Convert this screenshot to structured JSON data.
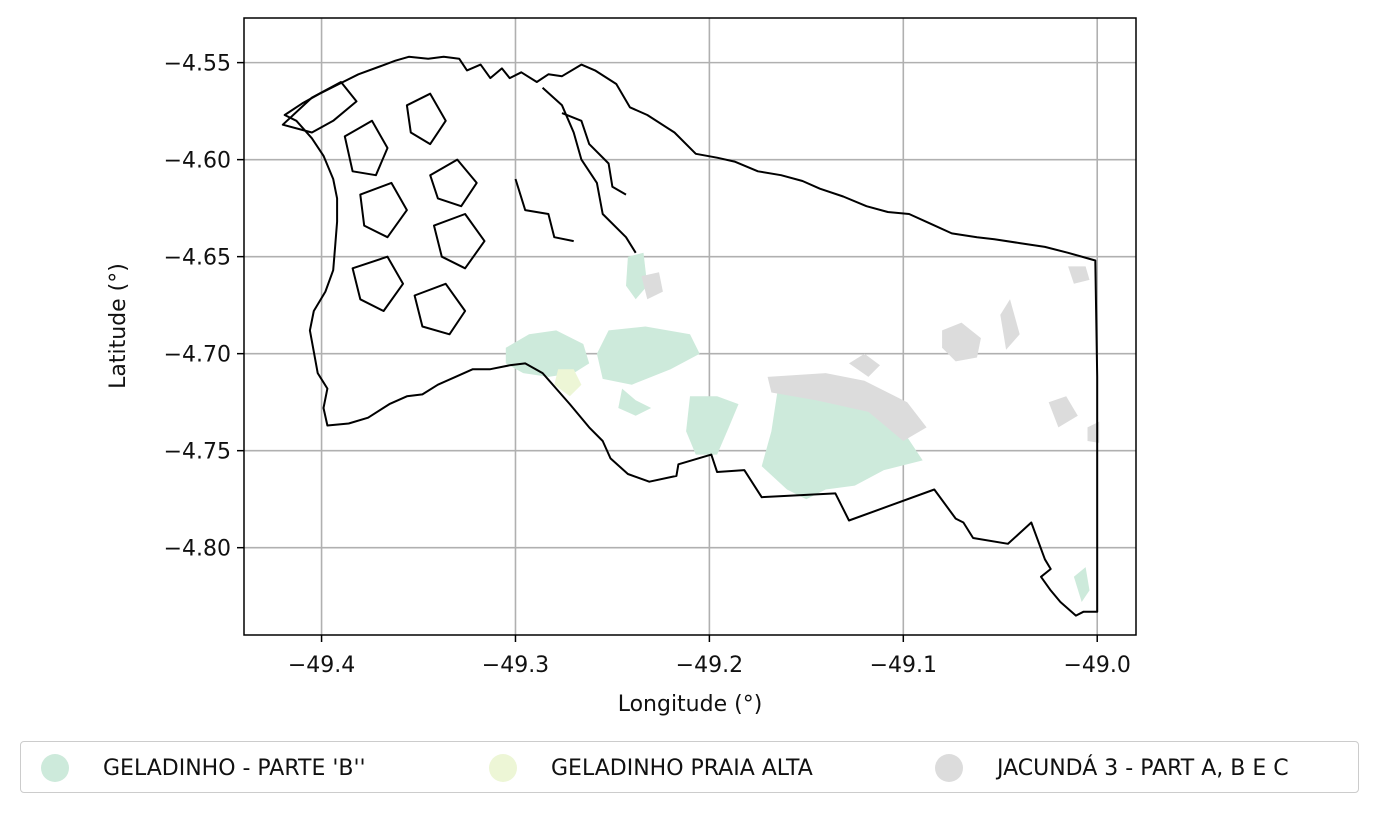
{
  "chart_data": {
    "type": "map",
    "xlabel": "Longitude (°)",
    "ylabel": "Latitude (°)",
    "xlim": [
      -49.44,
      -48.98
    ],
    "ylim": [
      -4.845,
      -4.527
    ],
    "xticks": [
      -49.4,
      -49.3,
      -49.2,
      -49.1,
      -49.0
    ],
    "xtick_labels": [
      "−49.4",
      "−49.3",
      "−49.2",
      "−49.1",
      "−49.0"
    ],
    "yticks": [
      -4.55,
      -4.6,
      -4.65,
      -4.7,
      -4.75,
      -4.8
    ],
    "ytick_labels": [
      "−4.55",
      "−4.60",
      "−4.65",
      "−4.70",
      "−4.75",
      "−4.80"
    ],
    "grid": true,
    "legend_placement": "bottom, outside plot",
    "legend": [
      {
        "label": "GELADINHO - PARTE 'B''",
        "color": "#cdeadb"
      },
      {
        "label": "GELADINHO PRAIA ALTA",
        "color": "#edf6d6"
      },
      {
        "label": "JACUNDÁ 3 - PART A, B E C",
        "color": "#dcdcdc"
      }
    ],
    "boundary": [
      [
        -49.355,
        -4.547
      ],
      [
        -49.345,
        -4.548
      ],
      [
        -49.337,
        -4.547
      ],
      [
        -49.329,
        -4.548
      ],
      [
        -49.325,
        -4.554
      ],
      [
        -49.318,
        -4.551
      ],
      [
        -49.313,
        -4.558
      ],
      [
        -49.307,
        -4.553
      ],
      [
        -49.303,
        -4.558
      ],
      [
        -49.297,
        -4.555
      ],
      [
        -49.289,
        -4.56
      ],
      [
        -49.283,
        -4.556
      ],
      [
        -49.276,
        -4.557
      ],
      [
        -49.266,
        -4.551
      ],
      [
        -49.259,
        -4.554
      ],
      [
        -49.248,
        -4.561
      ],
      [
        -49.241,
        -4.573
      ],
      [
        -49.232,
        -4.577
      ],
      [
        -49.218,
        -4.586
      ],
      [
        -49.207,
        -4.597
      ],
      [
        -49.196,
        -4.599
      ],
      [
        -49.187,
        -4.601
      ],
      [
        -49.175,
        -4.606
      ],
      [
        -49.163,
        -4.608
      ],
      [
        -49.152,
        -4.611
      ],
      [
        -49.143,
        -4.615
      ],
      [
        -49.131,
        -4.619
      ],
      [
        -49.119,
        -4.624
      ],
      [
        -49.108,
        -4.627
      ],
      [
        -49.097,
        -4.628
      ],
      [
        -49.086,
        -4.633
      ],
      [
        -49.075,
        -4.638
      ],
      [
        -49.062,
        -4.64
      ],
      [
        -49.053,
        -4.641
      ],
      [
        -49.04,
        -4.643
      ],
      [
        -49.027,
        -4.645
      ],
      [
        -49.015,
        -4.648
      ],
      [
        -49.001,
        -4.652
      ],
      [
        -49.0,
        -4.712
      ],
      [
        -49.0,
        -4.833
      ],
      [
        -49.007,
        -4.833
      ],
      [
        -49.011,
        -4.835
      ],
      [
        -49.019,
        -4.828
      ],
      [
        -49.024,
        -4.822
      ],
      [
        -49.029,
        -4.815
      ],
      [
        -49.024,
        -4.811
      ],
      [
        -49.027,
        -4.806
      ],
      [
        -49.034,
        -4.787
      ],
      [
        -49.046,
        -4.798
      ],
      [
        -49.064,
        -4.795
      ],
      [
        -49.069,
        -4.787
      ],
      [
        -49.073,
        -4.785
      ],
      [
        -49.084,
        -4.77
      ],
      [
        -49.128,
        -4.786
      ],
      [
        -49.135,
        -4.772
      ],
      [
        -49.173,
        -4.774
      ],
      [
        -49.182,
        -4.76
      ],
      [
        -49.196,
        -4.761
      ],
      [
        -49.199,
        -4.752
      ],
      [
        -49.216,
        -4.757
      ],
      [
        -49.217,
        -4.763
      ],
      [
        -49.231,
        -4.766
      ],
      [
        -49.242,
        -4.762
      ],
      [
        -49.251,
        -4.754
      ],
      [
        -49.255,
        -4.745
      ],
      [
        -49.262,
        -4.738
      ],
      [
        -49.272,
        -4.726
      ],
      [
        -49.279,
        -4.718
      ],
      [
        -49.286,
        -4.71
      ],
      [
        -49.295,
        -4.705
      ],
      [
        -49.303,
        -4.706
      ],
      [
        -49.313,
        -4.708
      ],
      [
        -49.322,
        -4.708
      ],
      [
        -49.331,
        -4.712
      ],
      [
        -49.34,
        -4.716
      ],
      [
        -49.348,
        -4.721
      ],
      [
        -49.356,
        -4.722
      ],
      [
        -49.365,
        -4.726
      ],
      [
        -49.376,
        -4.733
      ],
      [
        -49.386,
        -4.736
      ],
      [
        -49.397,
        -4.737
      ],
      [
        -49.399,
        -4.728
      ],
      [
        -49.397,
        -4.718
      ],
      [
        -49.402,
        -4.71
      ],
      [
        -49.404,
        -4.699
      ],
      [
        -49.406,
        -4.688
      ],
      [
        -49.404,
        -4.678
      ],
      [
        -49.398,
        -4.668
      ],
      [
        -49.394,
        -4.657
      ],
      [
        -49.393,
        -4.645
      ],
      [
        -49.392,
        -4.632
      ],
      [
        -49.392,
        -4.62
      ],
      [
        -49.394,
        -4.61
      ],
      [
        -49.399,
        -4.598
      ],
      [
        -49.405,
        -4.589
      ],
      [
        -49.413,
        -4.58
      ],
      [
        -49.419,
        -4.577
      ],
      [
        -49.41,
        -4.571
      ],
      [
        -49.401,
        -4.566
      ],
      [
        -49.391,
        -4.561
      ],
      [
        -49.381,
        -4.556
      ],
      [
        -49.37,
        -4.552
      ],
      [
        -49.362,
        -4.549
      ]
    ],
    "regions": [
      {
        "class": 0,
        "polygon": [
          [
            -49.305,
            -4.697
          ],
          [
            -49.293,
            -4.69
          ],
          [
            -49.279,
            -4.688
          ],
          [
            -49.265,
            -4.695
          ],
          [
            -49.262,
            -4.705
          ],
          [
            -49.27,
            -4.71
          ],
          [
            -49.283,
            -4.712
          ],
          [
            -49.296,
            -4.71
          ],
          [
            -49.305,
            -4.705
          ]
        ]
      },
      {
        "class": 0,
        "polygon": [
          [
            -49.258,
            -4.7
          ],
          [
            -49.252,
            -4.688
          ],
          [
            -49.233,
            -4.686
          ],
          [
            -49.21,
            -4.69
          ],
          [
            -49.205,
            -4.7
          ],
          [
            -49.22,
            -4.708
          ],
          [
            -49.24,
            -4.716
          ],
          [
            -49.255,
            -4.713
          ]
        ]
      },
      {
        "class": 0,
        "polygon": [
          [
            -49.242,
            -4.65
          ],
          [
            -49.234,
            -4.648
          ],
          [
            -49.232,
            -4.665
          ],
          [
            -49.238,
            -4.672
          ],
          [
            -49.243,
            -4.665
          ]
        ]
      },
      {
        "class": 0,
        "polygon": [
          [
            -49.245,
            -4.718
          ],
          [
            -49.238,
            -4.724
          ],
          [
            -49.23,
            -4.728
          ],
          [
            -49.238,
            -4.732
          ],
          [
            -49.247,
            -4.728
          ]
        ]
      },
      {
        "class": 0,
        "polygon": [
          [
            -49.21,
            -4.722
          ],
          [
            -49.196,
            -4.722
          ],
          [
            -49.185,
            -4.726
          ],
          [
            -49.19,
            -4.738
          ],
          [
            -49.196,
            -4.752
          ],
          [
            -49.207,
            -4.752
          ],
          [
            -49.212,
            -4.74
          ]
        ]
      },
      {
        "class": 0,
        "polygon": [
          [
            -49.165,
            -4.72
          ],
          [
            -49.15,
            -4.72
          ],
          [
            -49.13,
            -4.722
          ],
          [
            -49.118,
            -4.724
          ],
          [
            -49.11,
            -4.73
          ],
          [
            -49.1,
            -4.74
          ],
          [
            -49.09,
            -4.755
          ],
          [
            -49.11,
            -4.76
          ],
          [
            -49.125,
            -4.768
          ],
          [
            -49.14,
            -4.77
          ],
          [
            -49.15,
            -4.775
          ],
          [
            -49.16,
            -4.77
          ],
          [
            -49.173,
            -4.758
          ],
          [
            -49.168,
            -4.74
          ]
        ]
      },
      {
        "class": 0,
        "polygon": [
          [
            -49.012,
            -4.815
          ],
          [
            -49.006,
            -4.81
          ],
          [
            -49.004,
            -4.822
          ],
          [
            -49.008,
            -4.828
          ]
        ]
      },
      {
        "class": 1,
        "polygon": [
          [
            -49.278,
            -4.708
          ],
          [
            -49.27,
            -4.708
          ],
          [
            -49.266,
            -4.716
          ],
          [
            -49.272,
            -4.722
          ],
          [
            -49.28,
            -4.716
          ]
        ]
      },
      {
        "class": 2,
        "polygon": [
          [
            -49.17,
            -4.712
          ],
          [
            -49.14,
            -4.71
          ],
          [
            -49.12,
            -4.714
          ],
          [
            -49.098,
            -4.725
          ],
          [
            -49.088,
            -4.738
          ],
          [
            -49.1,
            -4.745
          ],
          [
            -49.118,
            -4.73
          ],
          [
            -49.145,
            -4.724
          ],
          [
            -49.168,
            -4.72
          ]
        ]
      },
      {
        "class": 2,
        "polygon": [
          [
            -49.235,
            -4.66
          ],
          [
            -49.226,
            -4.658
          ],
          [
            -49.224,
            -4.668
          ],
          [
            -49.232,
            -4.672
          ]
        ]
      },
      {
        "class": 2,
        "polygon": [
          [
            -49.08,
            -4.688
          ],
          [
            -49.07,
            -4.684
          ],
          [
            -49.06,
            -4.692
          ],
          [
            -49.062,
            -4.702
          ],
          [
            -49.073,
            -4.704
          ],
          [
            -49.08,
            -4.697
          ]
        ]
      },
      {
        "class": 2,
        "polygon": [
          [
            -49.05,
            -4.68
          ],
          [
            -49.045,
            -4.672
          ],
          [
            -49.04,
            -4.69
          ],
          [
            -49.047,
            -4.698
          ]
        ]
      },
      {
        "class": 2,
        "polygon": [
          [
            -49.025,
            -4.725
          ],
          [
            -49.016,
            -4.722
          ],
          [
            -49.01,
            -4.732
          ],
          [
            -49.02,
            -4.738
          ]
        ]
      },
      {
        "class": 2,
        "polygon": [
          [
            -49.015,
            -4.655
          ],
          [
            -49.006,
            -4.655
          ],
          [
            -49.004,
            -4.662
          ],
          [
            -49.012,
            -4.664
          ]
        ]
      },
      {
        "class": 2,
        "polygon": [
          [
            -49.005,
            -4.738
          ],
          [
            -48.999,
            -4.735
          ],
          [
            -48.999,
            -4.746
          ],
          [
            -49.005,
            -4.745
          ]
        ]
      },
      {
        "class": 2,
        "polygon": [
          [
            -49.128,
            -4.705
          ],
          [
            -49.12,
            -4.7
          ],
          [
            -49.112,
            -4.706
          ],
          [
            -49.118,
            -4.712
          ]
        ]
      }
    ],
    "islands": [
      [
        [
          -49.42,
          -4.582
        ],
        [
          -49.405,
          -4.568
        ],
        [
          -49.39,
          -4.56
        ],
        [
          -49.382,
          -4.57
        ],
        [
          -49.394,
          -4.58
        ],
        [
          -49.405,
          -4.586
        ]
      ],
      [
        [
          -49.388,
          -4.588
        ],
        [
          -49.374,
          -4.58
        ],
        [
          -49.366,
          -4.594
        ],
        [
          -49.372,
          -4.608
        ],
        [
          -49.384,
          -4.606
        ]
      ],
      [
        [
          -49.356,
          -4.572
        ],
        [
          -49.344,
          -4.566
        ],
        [
          -49.336,
          -4.58
        ],
        [
          -49.344,
          -4.592
        ],
        [
          -49.354,
          -4.586
        ]
      ],
      [
        [
          -49.344,
          -4.608
        ],
        [
          -49.33,
          -4.6
        ],
        [
          -49.32,
          -4.612
        ],
        [
          -49.328,
          -4.624
        ],
        [
          -49.34,
          -4.62
        ]
      ],
      [
        [
          -49.38,
          -4.618
        ],
        [
          -49.364,
          -4.612
        ],
        [
          -49.356,
          -4.626
        ],
        [
          -49.366,
          -4.64
        ],
        [
          -49.378,
          -4.634
        ]
      ],
      [
        [
          -49.342,
          -4.634
        ],
        [
          -49.326,
          -4.628
        ],
        [
          -49.316,
          -4.642
        ],
        [
          -49.326,
          -4.656
        ],
        [
          -49.338,
          -4.65
        ]
      ],
      [
        [
          -49.384,
          -4.656
        ],
        [
          -49.366,
          -4.65
        ],
        [
          -49.358,
          -4.664
        ],
        [
          -49.368,
          -4.678
        ],
        [
          -49.38,
          -4.672
        ]
      ],
      [
        [
          -49.352,
          -4.67
        ],
        [
          -49.336,
          -4.664
        ],
        [
          -49.326,
          -4.678
        ],
        [
          -49.334,
          -4.69
        ],
        [
          -49.348,
          -4.686
        ]
      ]
    ],
    "channels": [
      [
        [
          -49.286,
          -4.563
        ],
        [
          -49.276,
          -4.572
        ],
        [
          -49.27,
          -4.586
        ],
        [
          -49.266,
          -4.6
        ],
        [
          -49.258,
          -4.612
        ],
        [
          -49.255,
          -4.628
        ],
        [
          -49.243,
          -4.64
        ],
        [
          -49.238,
          -4.648
        ]
      ],
      [
        [
          -49.276,
          -4.576
        ],
        [
          -49.266,
          -4.58
        ],
        [
          -49.262,
          -4.592
        ],
        [
          -49.252,
          -4.602
        ],
        [
          -49.25,
          -4.614
        ],
        [
          -49.243,
          -4.618
        ]
      ],
      [
        [
          -49.3,
          -4.61
        ],
        [
          -49.295,
          -4.626
        ],
        [
          -49.283,
          -4.628
        ],
        [
          -49.28,
          -4.64
        ],
        [
          -49.27,
          -4.642
        ]
      ]
    ]
  }
}
